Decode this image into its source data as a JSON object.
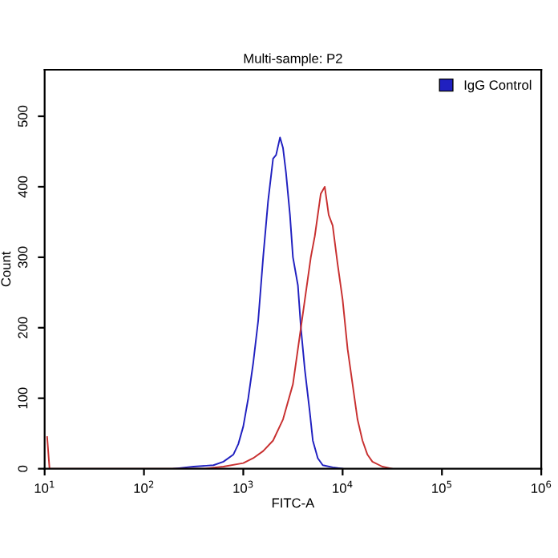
{
  "chart_data": {
    "type": "line",
    "title": "Multi-sample: P2",
    "xlabel": "FITC-A",
    "ylabel": "Count",
    "log": "x",
    "xlim": [
      10,
      1000000
    ],
    "xticks": [
      {
        "value": 10,
        "label": "10$^{1}$"
      },
      {
        "value": 100,
        "label": "10$^{2}$"
      },
      {
        "value": 1000,
        "label": "10$^{3}$"
      },
      {
        "value": 10000,
        "label": "10$^{4}$"
      },
      {
        "value": 100000,
        "label": "10$^{5}$"
      },
      {
        "value": 1000000,
        "label": "10$^{6}$"
      }
    ],
    "ylim": [
      0,
      566
    ],
    "yticks": [
      0,
      100,
      200,
      300,
      400,
      500
    ],
    "grid": false,
    "legend": "top right",
    "series": [
      {
        "name": "IgG Control",
        "color": "#2020c0",
        "x": [
          200,
          316,
          501,
          631,
          794,
          891,
          1000,
          1122,
          1259,
          1413,
          1585,
          1778,
          1995,
          2138,
          2344,
          2512,
          2692,
          2951,
          3162,
          3548,
          3802,
          4169,
          4677,
          5012,
          5623,
          6310,
          7943,
          10000
        ],
        "values": [
          0,
          3,
          5,
          10,
          20,
          35,
          60,
          100,
          150,
          210,
          300,
          380,
          440,
          445,
          470,
          455,
          420,
          360,
          300,
          260,
          200,
          140,
          80,
          40,
          15,
          5,
          2,
          0
        ]
      },
      {
        "color": "#c83030",
        "x": [
          10.6,
          11.2,
          398,
          631,
          1000,
          1259,
          1585,
          1995,
          2512,
          3162,
          3802,
          4169,
          4786,
          5248,
          6026,
          6607,
          7244,
          7943,
          8913,
          10000,
          11220,
          12589,
          14125,
          15849,
          17783,
          19953,
          25119,
          31623
        ],
        "values": [
          45,
          0,
          0,
          3,
          8,
          15,
          25,
          40,
          70,
          120,
          200,
          240,
          300,
          330,
          390,
          400,
          360,
          345,
          290,
          240,
          170,
          120,
          70,
          40,
          20,
          10,
          3,
          0
        ]
      }
    ]
  }
}
